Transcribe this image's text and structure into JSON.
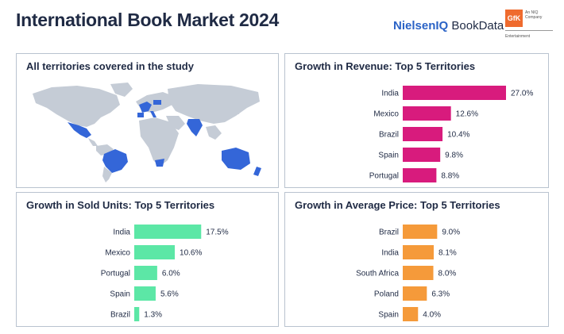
{
  "header": {
    "title": "International Book Market 2024",
    "logo_nielseniq_part1": "NielsenIQ",
    "logo_nielseniq_part2": "BookData",
    "logo_gfk": "GfK",
    "logo_gfk_tagline": "An NIQ Company",
    "logo_gfk_sub": "Entertainment"
  },
  "map_panel": {
    "title": "All territories covered in the study",
    "highlight_color": "#3466d8",
    "base_color": "#c5ccd6"
  },
  "chart_data": [
    {
      "id": "revenue",
      "type": "bar",
      "orientation": "horizontal",
      "title": "Growth in Revenue: Top 5 Territories",
      "categories": [
        "India",
        "Mexico",
        "Brazil",
        "Spain",
        "Portugal"
      ],
      "values": [
        27.0,
        12.6,
        10.4,
        9.8,
        8.8
      ],
      "labels": [
        "27.0%",
        "12.6%",
        "10.4%",
        "9.8%",
        "8.8%"
      ],
      "color": "#d81b7d",
      "xlim": [
        0,
        27.0
      ],
      "grid": false
    },
    {
      "id": "units",
      "type": "bar",
      "orientation": "horizontal",
      "title": "Growth in Sold Units: Top 5 Territories",
      "categories": [
        "India",
        "Mexico",
        "Portugal",
        "Spain",
        "Brazil"
      ],
      "values": [
        17.5,
        10.6,
        6.0,
        5.6,
        1.3
      ],
      "labels": [
        "17.5%",
        "10.6%",
        "6.0%",
        "5.6%",
        "1.3%"
      ],
      "color": "#5ce7a6",
      "xlim": [
        0,
        27.0
      ],
      "grid": false
    },
    {
      "id": "price",
      "type": "bar",
      "orientation": "horizontal",
      "title": "Growth in Average Price: Top 5 Territories",
      "categories": [
        "Brazil",
        "India",
        "South Africa",
        "Poland",
        "Spain"
      ],
      "values": [
        9.0,
        8.1,
        8.0,
        6.3,
        4.0
      ],
      "labels": [
        "9.0%",
        "8.1%",
        "8.0%",
        "6.3%",
        "4.0%"
      ],
      "color": "#f59a3a",
      "xlim": [
        0,
        27.0
      ],
      "grid": false
    }
  ]
}
